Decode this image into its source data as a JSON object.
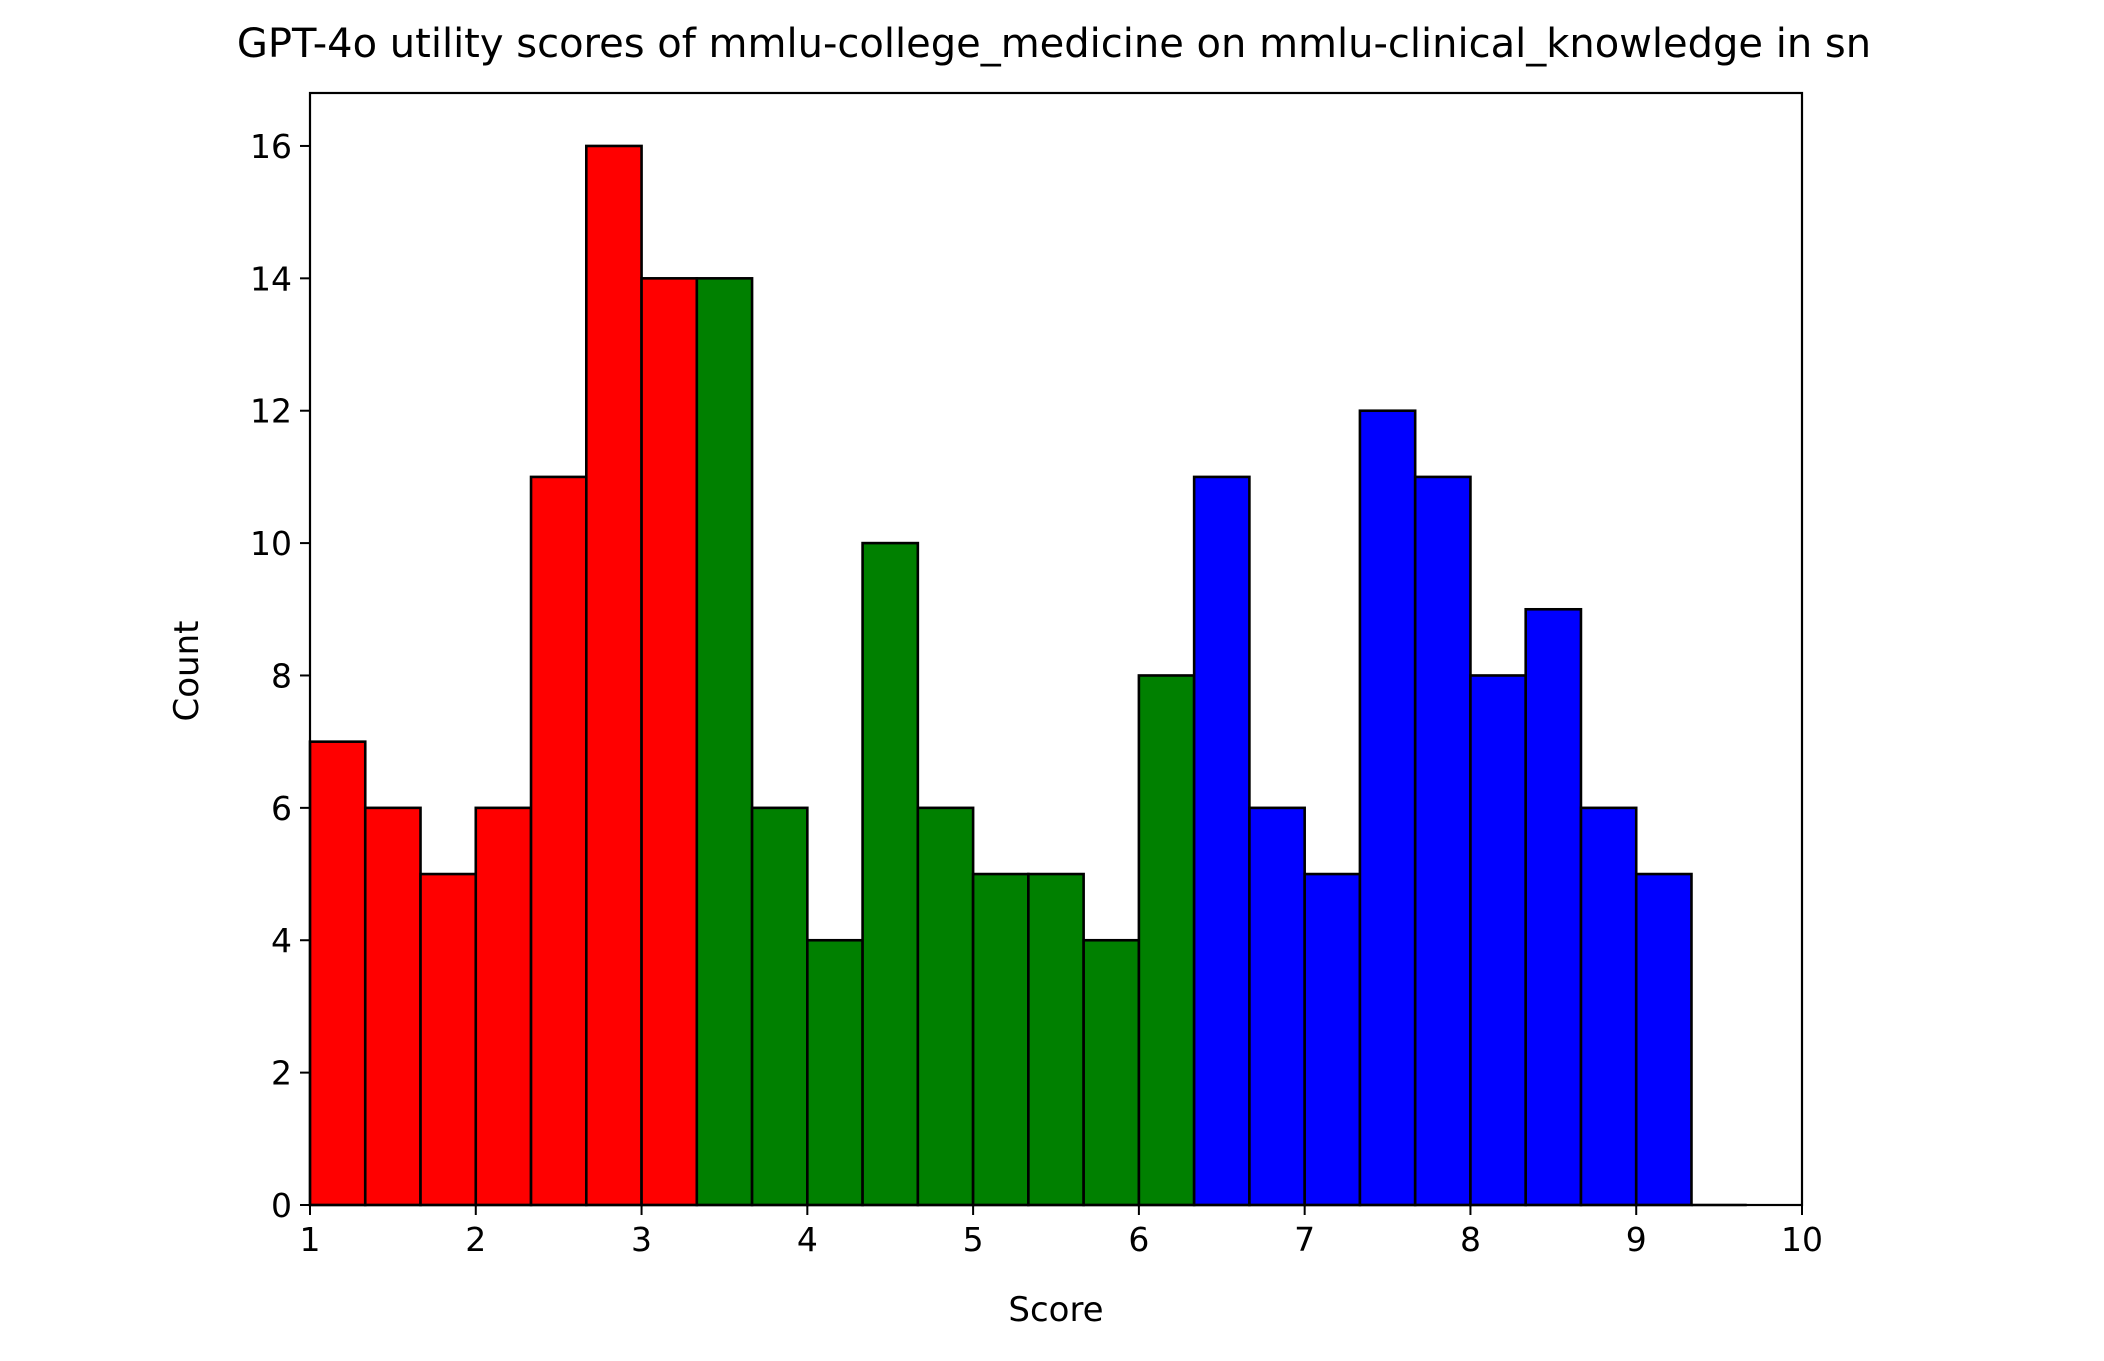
{
  "chart_data": {
    "type": "histogram",
    "title": "GPT-4o utility scores of mmlu-college_medicine on mmlu-clinical_knowledge in sn",
    "xlabel": "Score",
    "ylabel": "Count",
    "xlim": [
      1,
      10
    ],
    "ylim": [
      0,
      16.8
    ],
    "xticks": [
      "1",
      "2",
      "3",
      "4",
      "5",
      "6",
      "7",
      "8",
      "9",
      "10"
    ],
    "yticks": [
      "0",
      "2",
      "4",
      "6",
      "8",
      "10",
      "12",
      "14",
      "16"
    ],
    "bin_width": 0.3333,
    "grid": false,
    "legend": "none",
    "edge_color": "#000000",
    "series": [
      {
        "color": "#ff0000",
        "bins": [
          1.0,
          1.3333,
          1.6667,
          2.0,
          2.3333,
          2.6667,
          3.0
        ],
        "values": [
          7,
          6,
          5,
          6,
          11,
          16,
          14
        ]
      },
      {
        "color": "#008000",
        "bins": [
          3.3333,
          3.6667,
          4.0,
          4.3333,
          4.6667,
          5.0,
          5.3333,
          5.6667,
          6.0
        ],
        "values": [
          14,
          6,
          4,
          10,
          6,
          5,
          5,
          4,
          8
        ]
      },
      {
        "color": "#0000ff",
        "bins": [
          6.3333,
          6.6667,
          7.0,
          7.3333,
          7.6667,
          8.0,
          8.3333,
          8.6667,
          9.0,
          9.3333
        ],
        "values": [
          11,
          6,
          5,
          12,
          11,
          8,
          9,
          6,
          5,
          0
        ]
      }
    ]
  }
}
